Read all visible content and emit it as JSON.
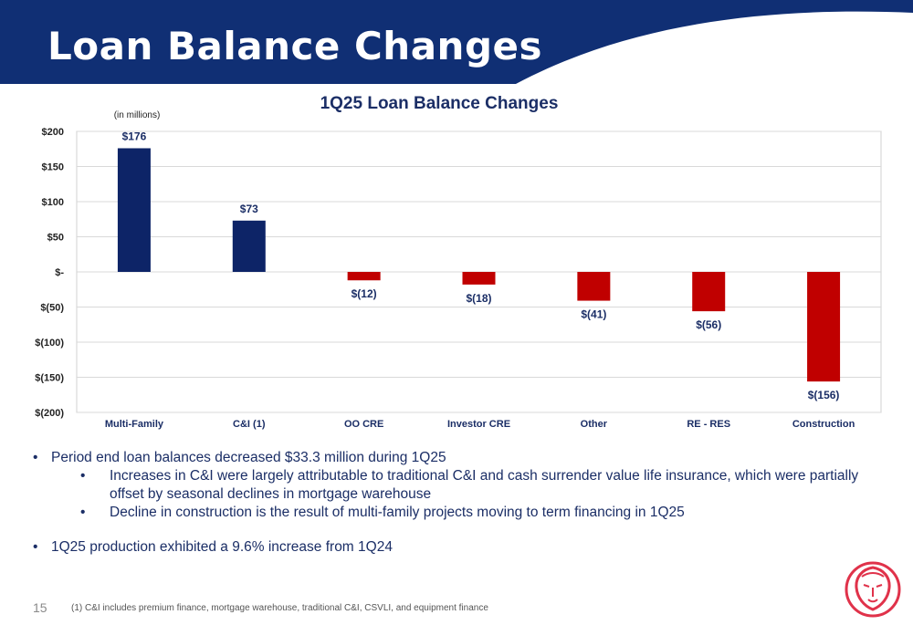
{
  "slide": {
    "title": "Loan Balance Changes",
    "page_number": "15",
    "footnote": "(1)   C&I includes premium finance, mortgage warehouse, traditional C&I, CSVLI, and equipment finance"
  },
  "colors": {
    "banner": "#102f74",
    "positive_bar": "#0d2467",
    "negative_bar": "#c00000",
    "chart_title": "#1b2e66",
    "logo": "#e0324a"
  },
  "chart_data": {
    "type": "bar",
    "title": "1Q25 Loan Balance Changes",
    "subtitle": "(in millions)",
    "categories": [
      "Multi-Family",
      "C&I (1)",
      "OO CRE",
      "Investor CRE",
      "Other",
      "RE - RES",
      "Construction"
    ],
    "values": [
      176,
      73,
      -12,
      -18,
      -41,
      -56,
      -156
    ],
    "value_labels": [
      "$176",
      "$73",
      "$(12)",
      "$(18)",
      "$(41)",
      "$(56)",
      "$(156)"
    ],
    "ylim": [
      -200,
      200
    ],
    "yticks": [
      200,
      150,
      100,
      50,
      0,
      -50,
      -100,
      -150,
      -200
    ],
    "ytick_labels": [
      "$200",
      "$150",
      "$100",
      "$50",
      "$-",
      "$(50)",
      "$(100)",
      "$(150)",
      "$(200)"
    ],
    "grid": true,
    "legend": "none"
  },
  "bullets": [
    {
      "text": "Period end loan balances decreased $33.3 million during 1Q25",
      "sub": [
        "Increases in C&I were largely attributable to traditional C&I and cash surrender value life insurance, which were partially offset by seasonal declines in mortgage warehouse",
        "Decline in construction is the result of multi-family projects moving to term financing in 1Q25"
      ]
    },
    {
      "text": "1Q25 production exhibited a 9.6% increase from 1Q24",
      "sub": []
    }
  ]
}
